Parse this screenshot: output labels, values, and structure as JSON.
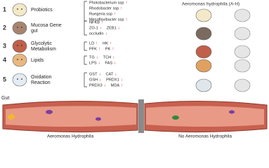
{
  "title": "Aeromonas hydrophila (A-H)",
  "rows": [
    {
      "number": "1",
      "label": [
        "Probiotics"
      ],
      "items": [
        [
          {
            "label": "Photobacterium ssp",
            "trend": "↑"
          }
        ],
        [
          {
            "label": "Rhodobacter ssp",
            "trend": "↑"
          }
        ],
        [
          {
            "label": "Ruegeria ssp",
            "trend": "↑"
          }
        ],
        [
          {
            "label": "Mesoflavibacter ssp",
            "trend": "↑"
          }
        ]
      ]
    },
    {
      "number": "2",
      "label": [
        "Mucosa Gene",
        "gut"
      ],
      "items": [
        [
          {
            "label": "NFKB",
            "trend": "↑"
          }
        ],
        [
          {
            "label": "ZO-1",
            "trend": "↓"
          },
          {
            "label": "ZEB1",
            "trend": "↓"
          }
        ],
        [
          {
            "label": "occludin",
            "trend": "↓"
          }
        ]
      ]
    },
    {
      "number": "3",
      "label": [
        "Glycolytic",
        "Metabolism"
      ],
      "items": [
        [
          {
            "label": "LD",
            "trend": "↑"
          },
          {
            "label": "HK",
            "trend": "↑"
          }
        ],
        [
          {
            "label": "PFK",
            "trend": "↑"
          },
          {
            "label": "PK",
            "trend": "↑"
          }
        ]
      ]
    },
    {
      "number": "4",
      "label": [
        "Lipids"
      ],
      "items": [
        [
          {
            "label": "TG",
            "trend": "↓"
          },
          {
            "label": "TCH",
            "trend": "↓"
          }
        ],
        [
          {
            "label": "LPS",
            "trend": "↓"
          },
          {
            "label": "FAS",
            "trend": "↓"
          }
        ]
      ]
    },
    {
      "number": "5",
      "label": [
        "Oxidation",
        "Reaction"
      ],
      "items": [
        [
          {
            "label": "GST",
            "trend": "↓"
          },
          {
            "label": "CAT",
            "trend": "↓"
          }
        ],
        [
          {
            "label": "GSH",
            "trend": "↓"
          },
          {
            "label": "PRDX1",
            "trend": "↓"
          }
        ],
        [
          {
            "label": "PRDX3",
            "trend": "↓"
          },
          {
            "label": "MDA",
            "trend": "↑"
          }
        ]
      ]
    }
  ],
  "gut": {
    "label": "Gut",
    "left": "Aeromonas Hydrophila",
    "right": "No Aeromonas Hydrophila"
  }
}
